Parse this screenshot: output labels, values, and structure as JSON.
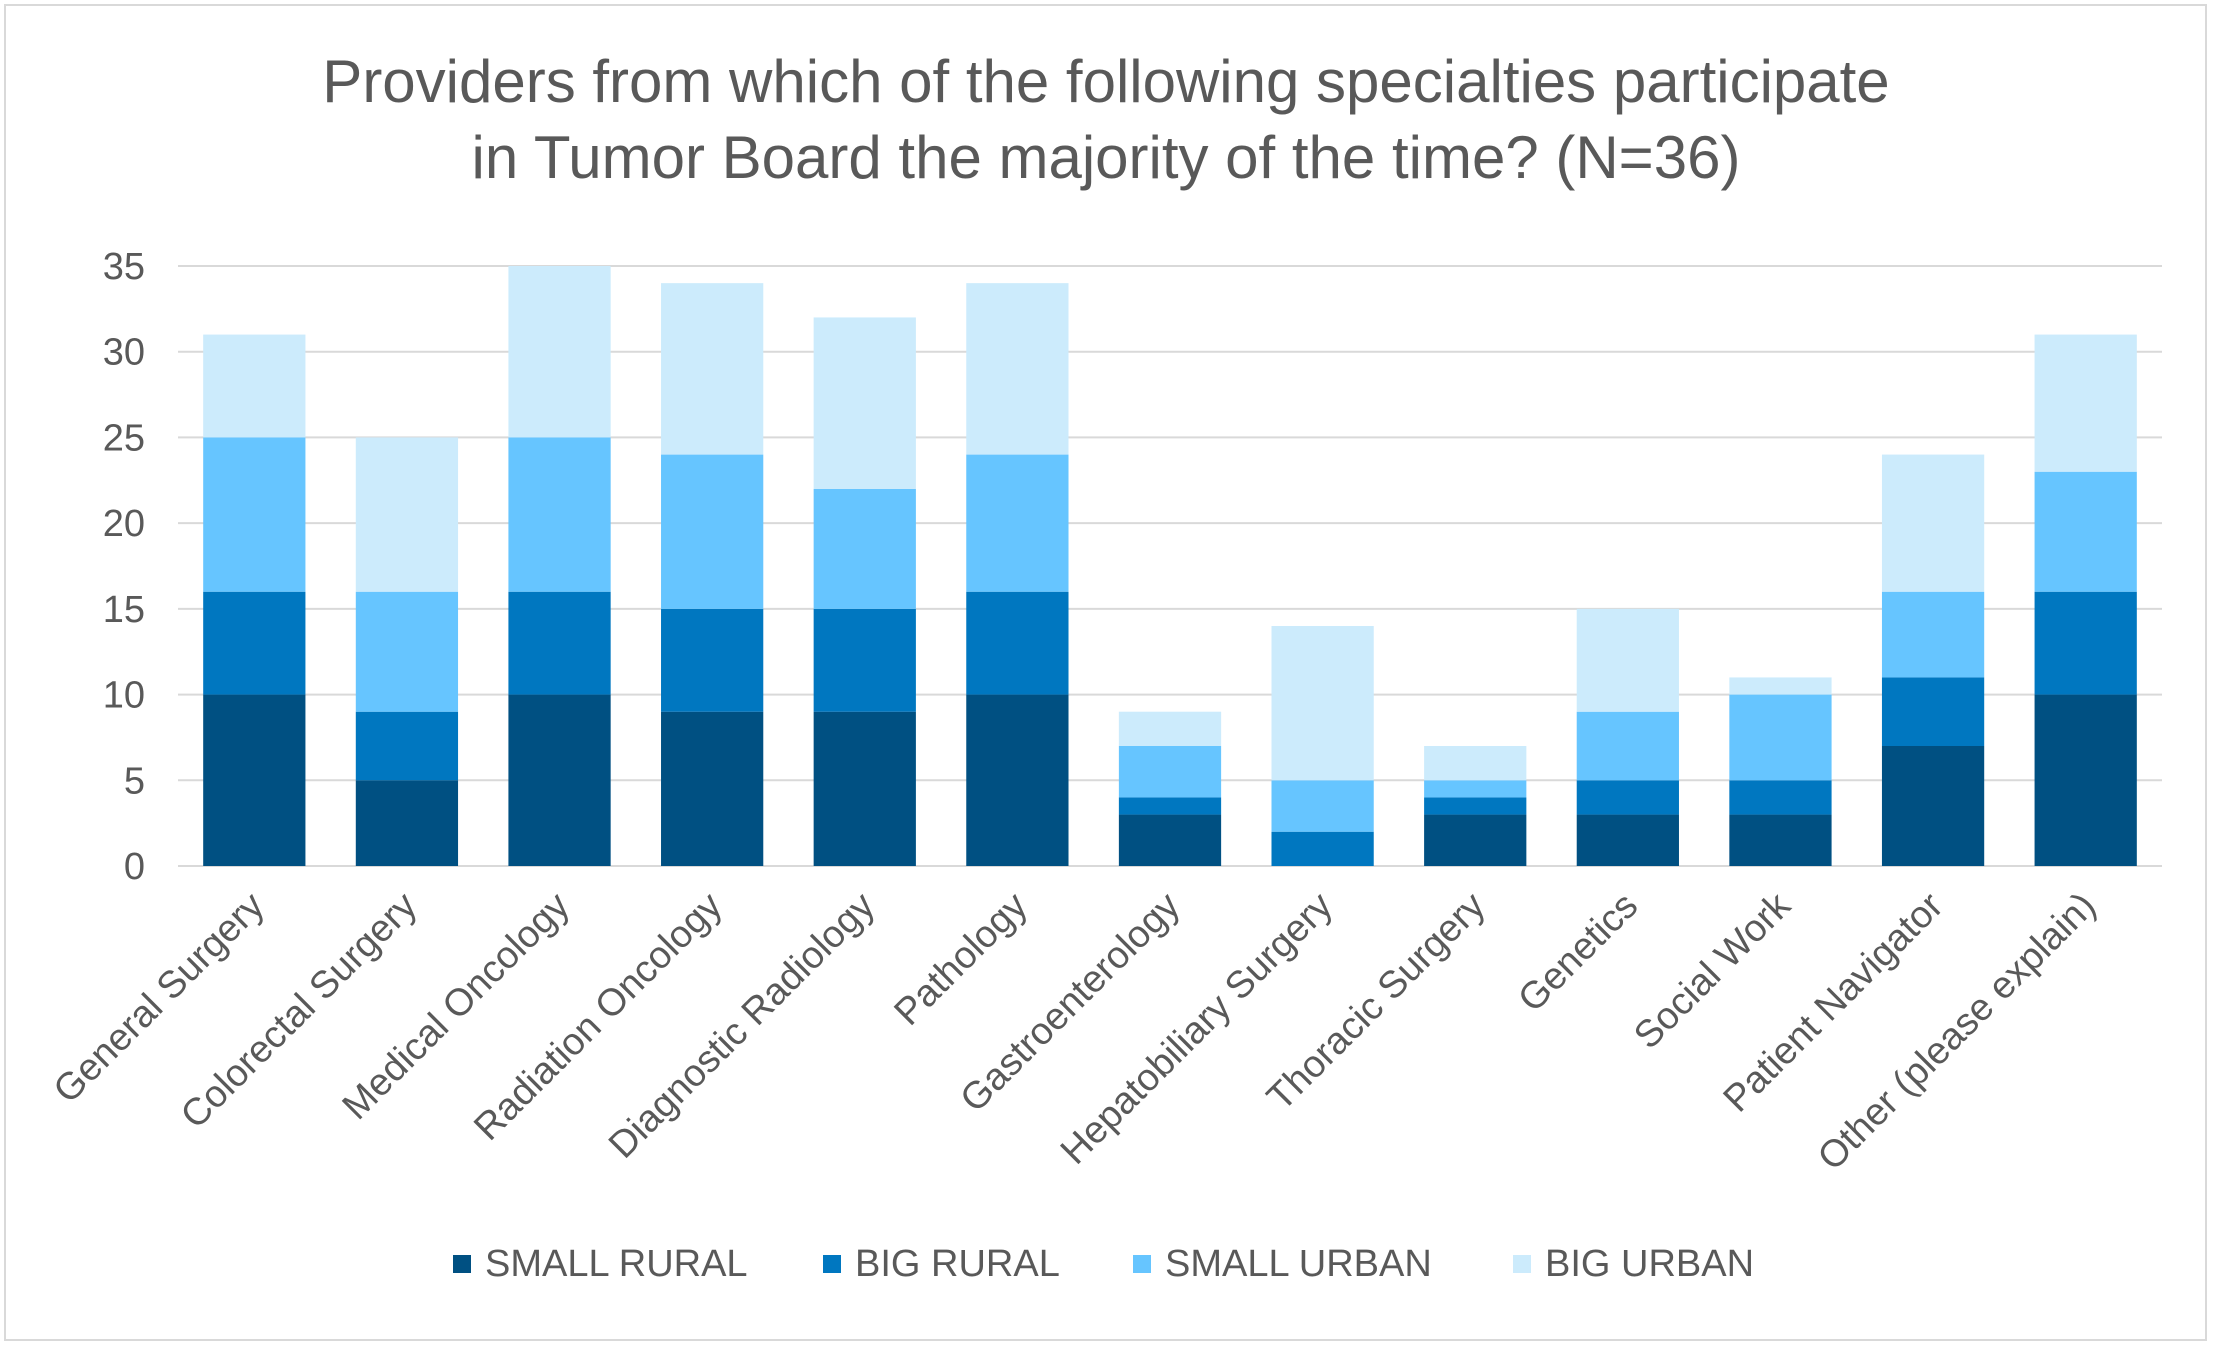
{
  "chart_data": {
    "type": "bar",
    "stacked": true,
    "title_lines": [
      "Providers from which of the following specialties participate",
      "in Tumor Board the majority of the time? (N=36)"
    ],
    "categories": [
      "General Surgery",
      "Colorectal Surgery",
      "Medical Oncology",
      "Radiation Oncology",
      "Diagnostic Radiology",
      "Pathology",
      "Gastroenterology",
      "Hepatobiliary Surgery",
      "Thoracic Surgery",
      "Genetics",
      "Social Work",
      "Patient Navigator",
      "Other (please explain)"
    ],
    "series": [
      {
        "name": "SMALL RURAL",
        "color": "#005082",
        "values": [
          10,
          5,
          10,
          9,
          9,
          10,
          3,
          0,
          3,
          3,
          3,
          7,
          10
        ]
      },
      {
        "name": "BIG RURAL",
        "color": "#0077C0",
        "values": [
          6,
          4,
          6,
          6,
          6,
          6,
          1,
          2,
          1,
          2,
          2,
          4,
          6
        ]
      },
      {
        "name": "SMALL URBAN",
        "color": "#66C5FF",
        "values": [
          9,
          7,
          9,
          9,
          7,
          8,
          3,
          3,
          1,
          4,
          5,
          5,
          7
        ]
      },
      {
        "name": "BIG URBAN",
        "color": "#CCEBFC",
        "values": [
          6,
          9,
          10,
          10,
          10,
          10,
          2,
          9,
          2,
          6,
          1,
          8,
          8
        ]
      }
    ],
    "ylim": [
      0,
      35
    ],
    "yticks": [
      "0",
      "5",
      "10",
      "15",
      "20",
      "25",
      "30",
      "35"
    ],
    "grid": true,
    "legend_position": "bottom",
    "colors": {
      "grid": "#d9d9d9",
      "text": "#595959"
    }
  }
}
